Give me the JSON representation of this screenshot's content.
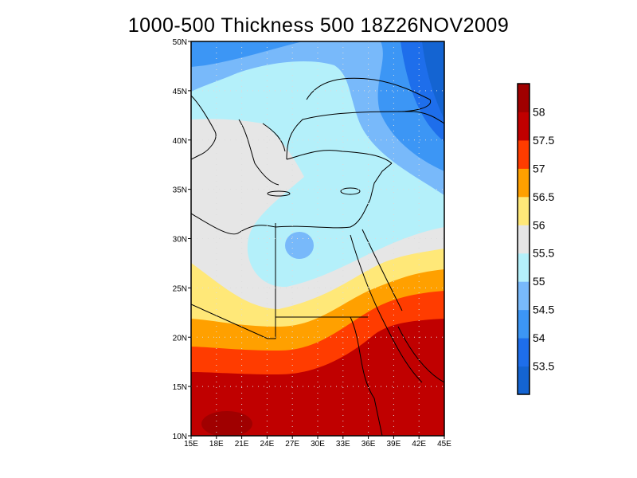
{
  "title": "1000-500 Thickness 500 18Z26NOV2009",
  "chart_data": {
    "type": "filled-contour-map",
    "title": "1000-500 Thickness 500 18Z26NOV2009",
    "lon_range": [
      15,
      45
    ],
    "lat_range": [
      10,
      50
    ],
    "x_ticks": [
      "15E",
      "18E",
      "21E",
      "24E",
      "27E",
      "30E",
      "33E",
      "36E",
      "39E",
      "42E",
      "45E"
    ],
    "x_tick_values": [
      15,
      18,
      21,
      24,
      27,
      30,
      33,
      36,
      39,
      42,
      45
    ],
    "y_ticks": [
      "10N",
      "15N",
      "20N",
      "25N",
      "30N",
      "35N",
      "40N",
      "45N",
      "50N"
    ],
    "y_tick_values": [
      10,
      15,
      20,
      25,
      30,
      35,
      40,
      45,
      50
    ],
    "grid": true,
    "colorbar": {
      "levels": [
        "53.5",
        "54",
        "54.5",
        "55",
        "55.5",
        "56",
        "56.5",
        "57",
        "57.5",
        "58"
      ],
      "colors": [
        "#1464d2",
        "#1e6eeb",
        "#3c96f5",
        "#78b9fa",
        "#b4f0fa",
        "#e6e6e6",
        "#ffe878",
        "#ffa000",
        "#ff3c00",
        "#c00000",
        "#a00000"
      ],
      "placement": "right"
    }
  }
}
